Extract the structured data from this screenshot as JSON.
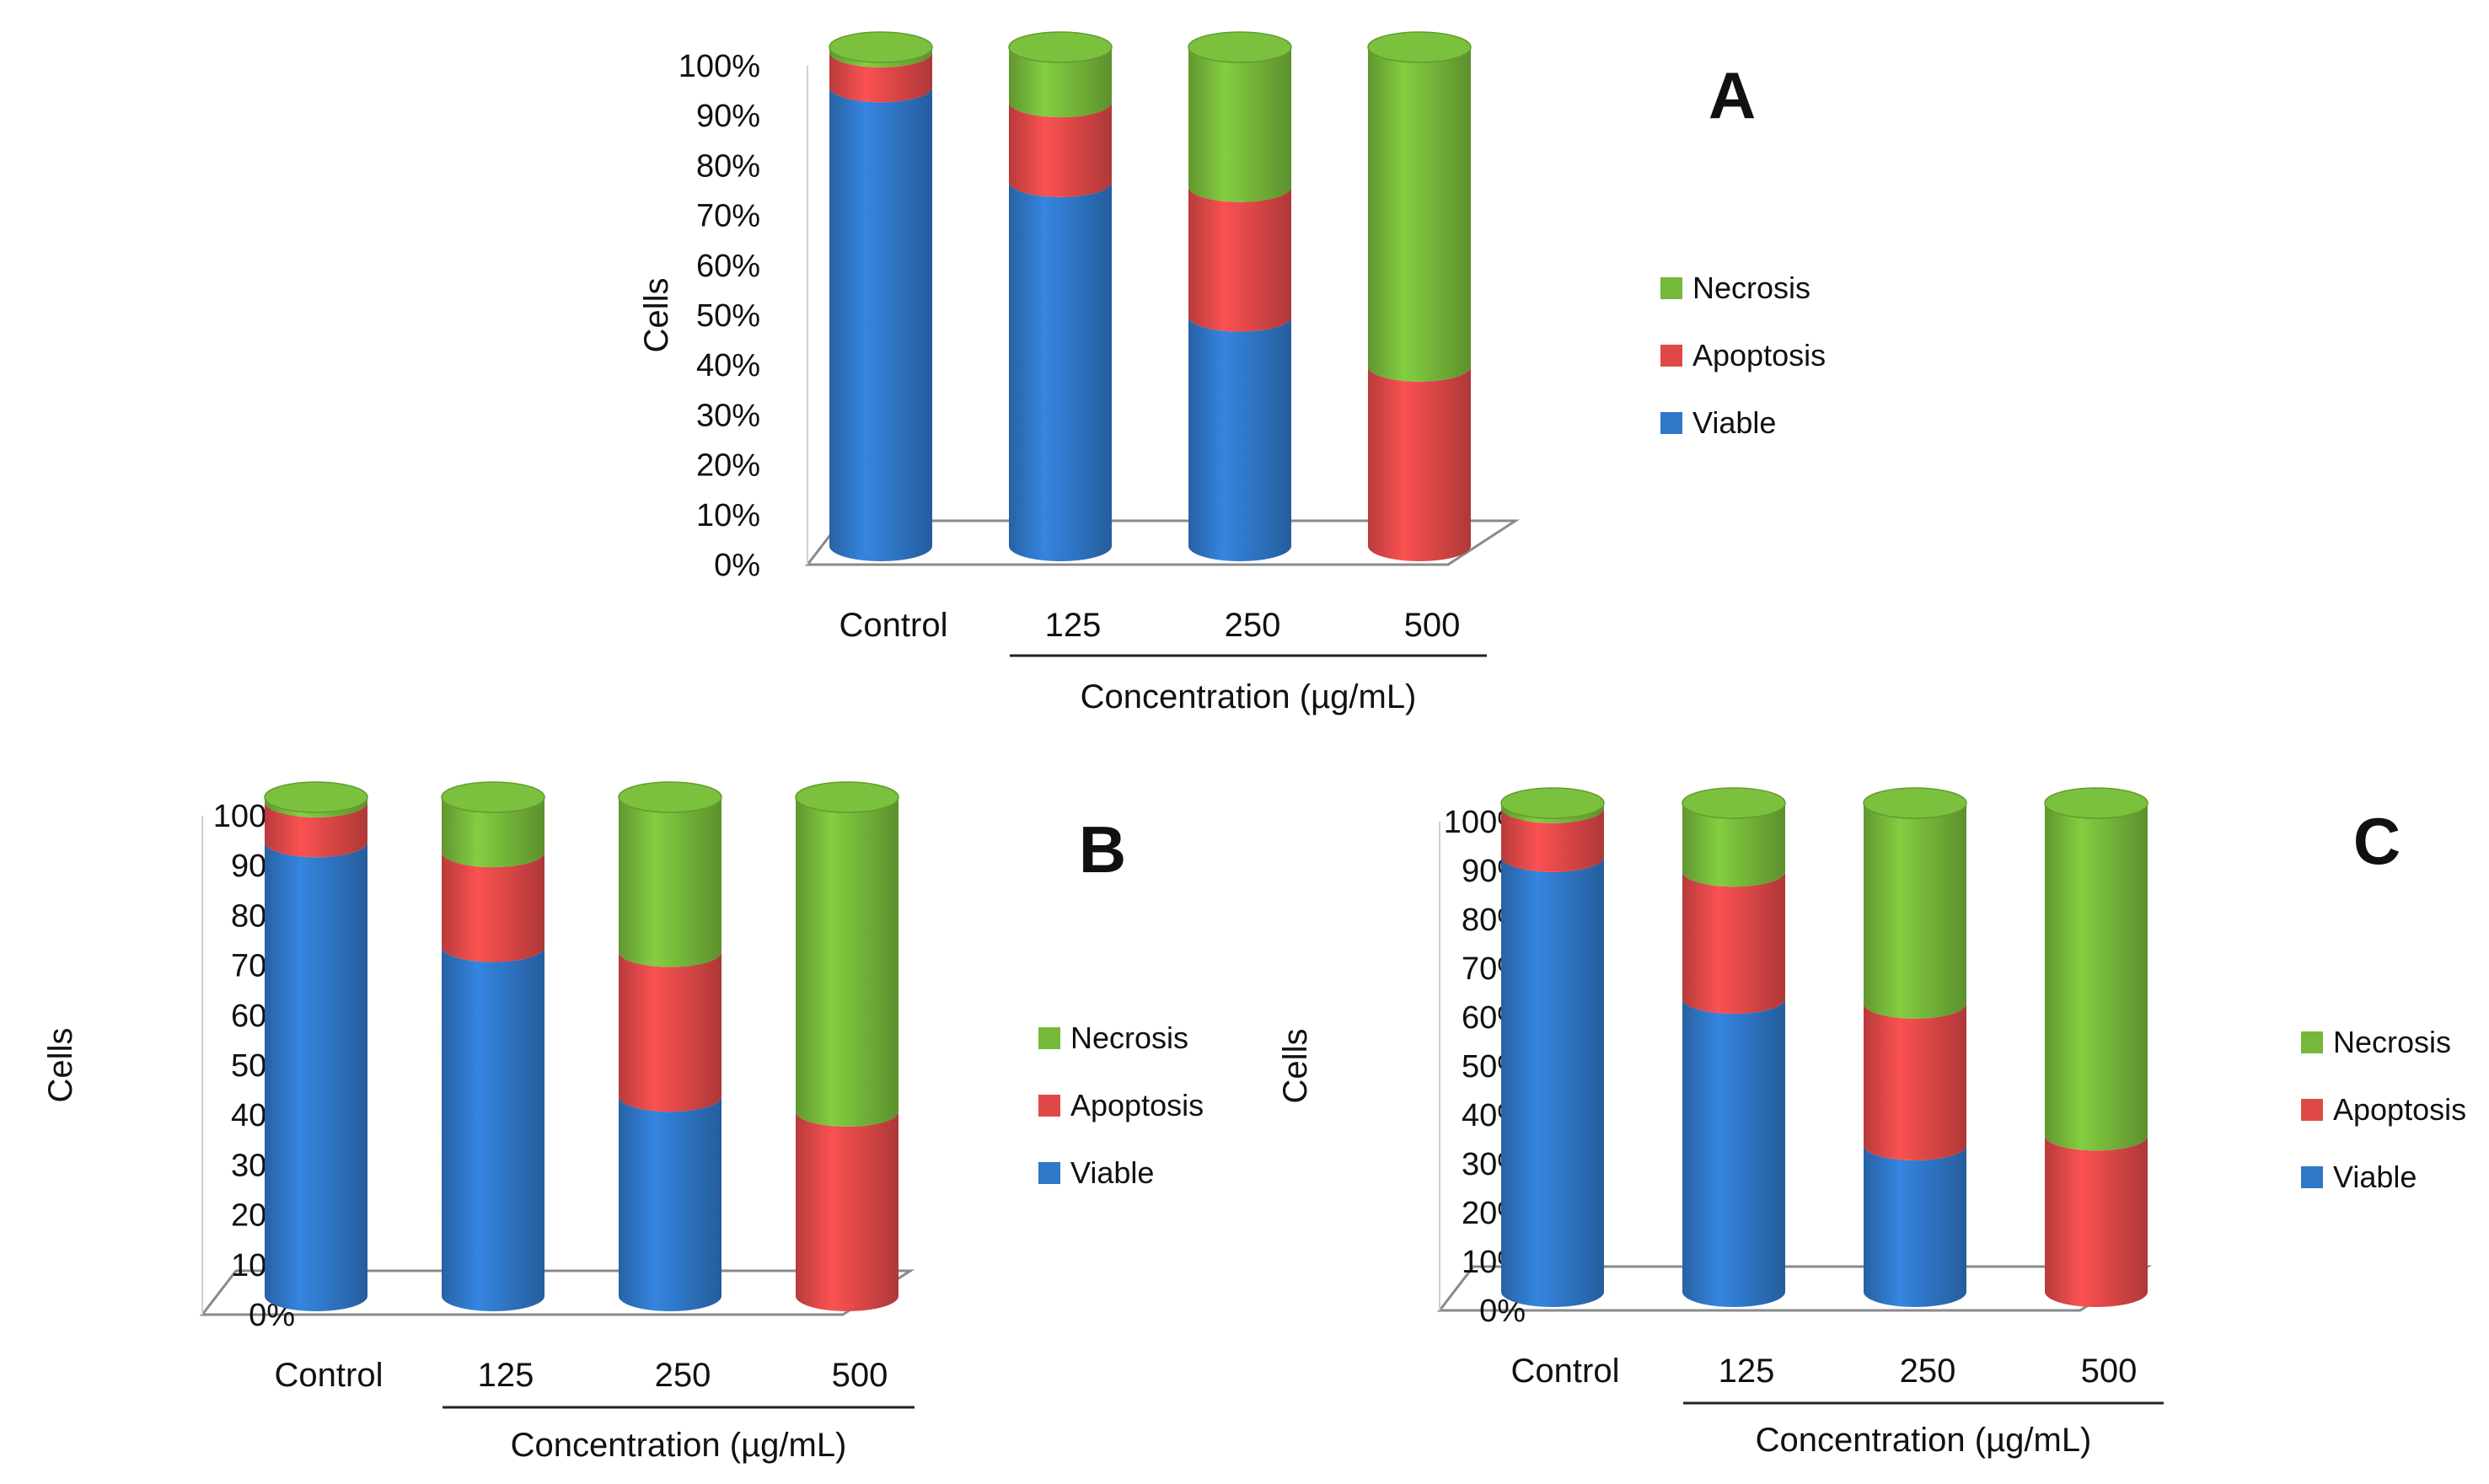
{
  "colors": {
    "Viable": "#2f77c8",
    "Apoptosis": "#e04848",
    "Necrosis": "#76b83a",
    "Viable_dark": "#1f5ea8",
    "Apoptosis_dark": "#b83232",
    "Necrosis_dark": "#5c9a2a",
    "floor": "#ffffff",
    "floor_stroke": "#8a8a8a",
    "axis": "#555555",
    "text": "#111111"
  },
  "chart_data": [
    {
      "type": "bar",
      "stacked": true,
      "panel": "A",
      "title": "A",
      "categories": [
        "Control",
        "125",
        "250",
        "500"
      ],
      "series": [
        {
          "name": "Viable",
          "values": [
            92,
            73,
            46,
            0
          ]
        },
        {
          "name": "Apoptosis",
          "values": [
            7,
            16,
            26,
            36
          ]
        },
        {
          "name": "Necrosis",
          "values": [
            1,
            11,
            28,
            64
          ]
        }
      ],
      "ylabel": "Cells",
      "xlabel": "Concentration (µg/mL)",
      "ylim": [
        0,
        100
      ],
      "yticks": [
        "0%",
        "10%",
        "20%",
        "30%",
        "40%",
        "50%",
        "60%",
        "70%",
        "80%",
        "90%",
        "100%"
      ],
      "legend": [
        "Necrosis",
        "Apoptosis",
        "Viable"
      ],
      "legend_position": "right"
    },
    {
      "type": "bar",
      "stacked": true,
      "panel": "B",
      "title": "B",
      "categories": [
        "Control",
        "125",
        "250",
        "500"
      ],
      "series": [
        {
          "name": "Viable",
          "values": [
            91,
            70,
            40,
            0
          ]
        },
        {
          "name": "Apoptosis",
          "values": [
            8,
            19,
            29,
            37
          ]
        },
        {
          "name": "Necrosis",
          "values": [
            1,
            11,
            31,
            63
          ]
        }
      ],
      "ylabel": "Cells",
      "xlabel": "Concentration (µg/mL)",
      "ylim": [
        0,
        100
      ],
      "yticks": [
        "0%",
        "10%",
        "20%",
        "30%",
        "40%",
        "50%",
        "60%",
        "70%",
        "80%",
        "90%",
        "100%"
      ],
      "legend": [
        "Necrosis",
        "Apoptosis",
        "Viable"
      ],
      "legend_position": "right"
    },
    {
      "type": "bar",
      "stacked": true,
      "panel": "C",
      "title": "C",
      "categories": [
        "Control",
        "125",
        "250",
        "500"
      ],
      "series": [
        {
          "name": "Viable",
          "values": [
            89,
            60,
            30,
            0
          ]
        },
        {
          "name": "Apoptosis",
          "values": [
            10,
            26,
            29,
            32
          ]
        },
        {
          "name": "Necrosis",
          "values": [
            1,
            14,
            41,
            68
          ]
        }
      ],
      "ylabel": "Cells",
      "xlabel": "Concentration (µg/mL)",
      "ylim": [
        0,
        100
      ],
      "yticks": [
        "0%",
        "10%",
        "20%",
        "30%",
        "40%",
        "50%",
        "60%",
        "70%",
        "80%",
        "90%",
        "100%"
      ],
      "legend": [
        "Necrosis",
        "Apoptosis",
        "Viable"
      ],
      "legend_position": "right"
    }
  ]
}
